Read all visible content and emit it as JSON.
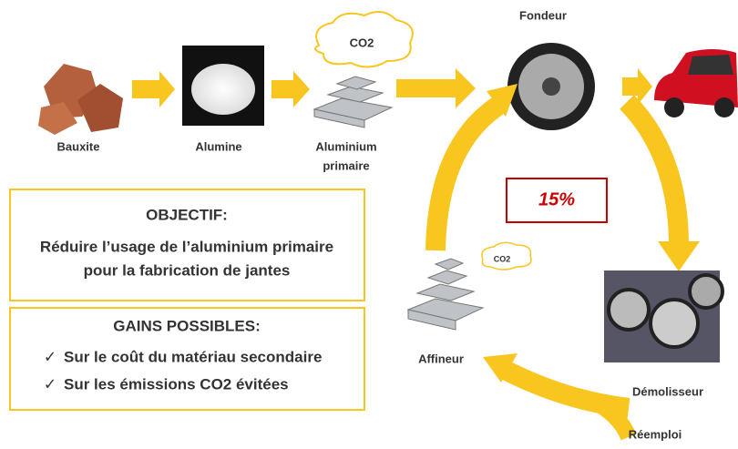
{
  "chain": {
    "bauxite": "Bauxite",
    "alumine": "Alumine",
    "aluminium_primaire": [
      "Aluminium",
      "primaire"
    ],
    "co2_top": "CO2",
    "fondeur": "Fondeur"
  },
  "cycle": {
    "percent": "15%",
    "affineur": "Affineur",
    "co2_small": "CO2",
    "demolisseur": "Démolisseur",
    "reemploi": "Réemploi"
  },
  "objectif": {
    "title": "OBJECTIF:",
    "lines": [
      "Réduire l’usage de l’aluminium primaire",
      "pour la fabrication de jantes"
    ]
  },
  "gains": {
    "title": "GAINS POSSIBLES:",
    "items": [
      {
        "mark": "✓",
        "text": "Sur le coût du matériau secondaire"
      },
      {
        "mark": "✓",
        "text": "Sur les émissions CO2 évitées"
      }
    ]
  }
}
